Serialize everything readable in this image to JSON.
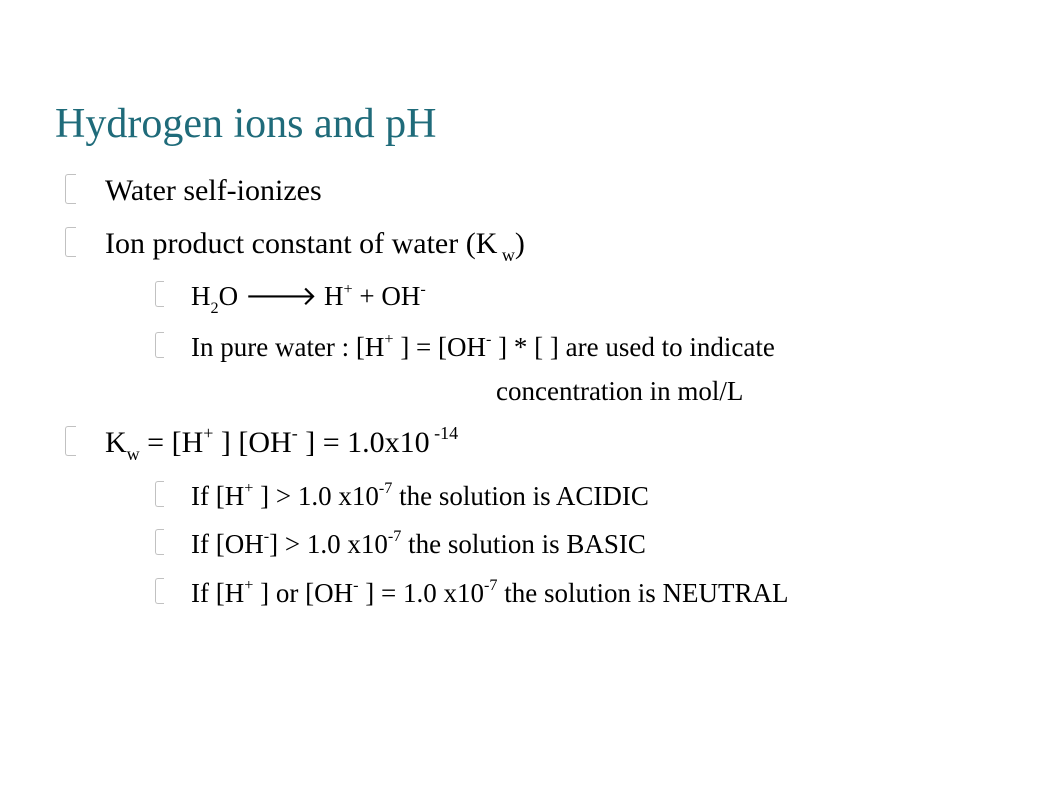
{
  "title_color": "#1f6b7a",
  "text_color": "#000000",
  "background_color": "#ffffff",
  "title": "Hydrogen ions and pH",
  "bullets": [
    {
      "text_parts": [
        "Water self-ionizes"
      ],
      "sub": []
    },
    {
      "text_parts": [
        "Ion product constant of water (K",
        {
          "sub": " w"
        },
        ")"
      ],
      "sub": [
        {
          "text_parts": [
            "H",
            {
              "sub": "2"
            },
            "O ",
            "🡒",
            "    H",
            {
              "sup": "+"
            },
            " +  OH",
            {
              "sup": "-"
            }
          ]
        },
        {
          "text_parts": [
            "In pure water : [H",
            {
              "sup": "+"
            },
            " ] = [OH",
            {
              "sup": "-"
            },
            " ]     * [ ] are used to indicate",
            {
              "br": true
            },
            {
              "indent": true
            },
            "concentration   in mol/L"
          ]
        }
      ]
    },
    {
      "text_parts": [
        "K",
        {
          "sub": "w"
        },
        " = [H",
        {
          "sup": "+"
        },
        " ] [OH",
        {
          "sup": "-"
        },
        " ] = 1.0x10",
        {
          "sup": " -14"
        }
      ],
      "sub": [
        {
          "text_parts": [
            "If [H",
            {
              "sup": "+"
            },
            " ] > 1.0 x10",
            {
              "sup": "-7"
            },
            "    the solution is ACIDIC"
          ]
        },
        {
          "text_parts": [
            "If [OH",
            {
              "sup": "-"
            },
            "] > 1.0 x10",
            {
              "sup": "-7"
            },
            "    the solution is BASIC"
          ]
        },
        {
          "text_parts": [
            "If [H",
            {
              "sup": "+"
            },
            " ] or [OH",
            {
              "sup": "-"
            },
            " ] = 1.0 x10",
            {
              "sup": "-7"
            },
            "    the solution is NEUTRAL"
          ]
        }
      ]
    }
  ]
}
